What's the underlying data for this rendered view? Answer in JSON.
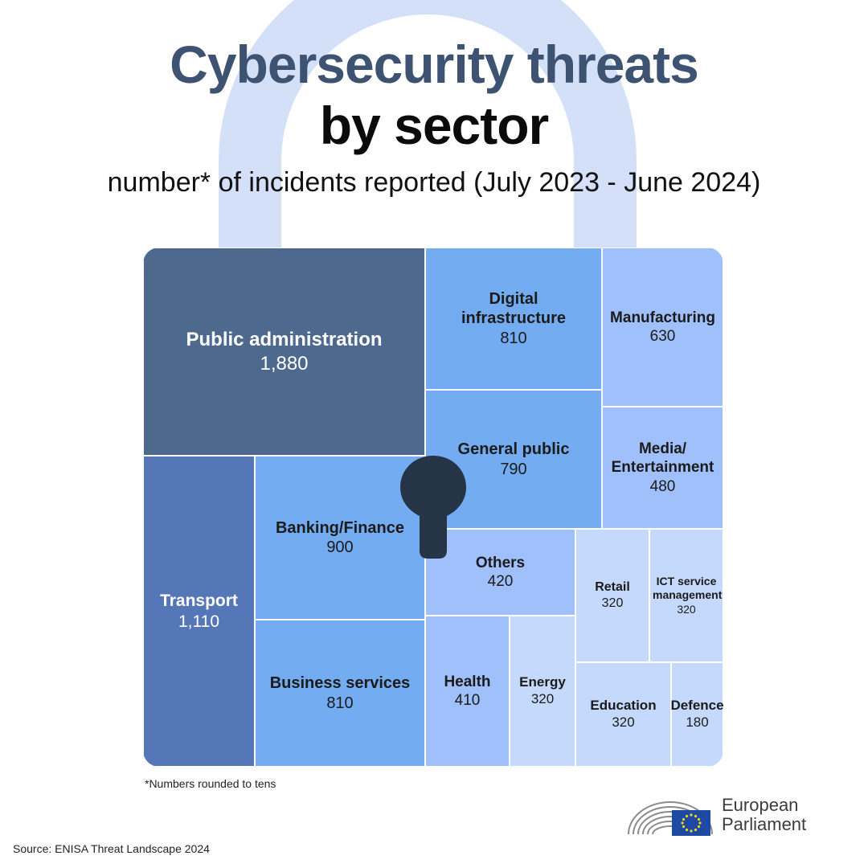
{
  "title": {
    "line1": "Cybersecurity threats",
    "line2": "by sector"
  },
  "subtitle": "number* of incidents reported (July 2023 - June 2024)",
  "chart_data": {
    "type": "treemap",
    "value_unit": "number of incidents reported",
    "categories": [
      "Public administration",
      "Transport",
      "Banking/Finance",
      "Business services",
      "Digital infrastructure",
      "General public",
      "Manufacturing",
      "Media/ Entertainment",
      "Others",
      "Health",
      "Energy",
      "Retail",
      "ICT service management",
      "Education",
      "Defence"
    ],
    "items": [
      {
        "name": "Public administration",
        "value": 1880,
        "label": "1,880",
        "color": "#4d6a8e",
        "text_color": "#ffffff"
      },
      {
        "name": "Transport",
        "value": 1110,
        "label": "1,110",
        "color": "#5577b8",
        "text_color": "#ffffff"
      },
      {
        "name": "Banking/Finance",
        "value": 900,
        "label": "900",
        "color": "#74acf1",
        "text_color": "#1b1b1b"
      },
      {
        "name": "Business services",
        "value": 810,
        "label": "810",
        "color": "#74acf1",
        "text_color": "#1b1b1b"
      },
      {
        "name": "Digital infrastructure",
        "value": 810,
        "label": "810",
        "color": "#74acf1",
        "text_color": "#1b1b1b"
      },
      {
        "name": "General public",
        "value": 790,
        "label": "790",
        "color": "#74acf1",
        "text_color": "#1b1b1b"
      },
      {
        "name": "Manufacturing",
        "value": 630,
        "label": "630",
        "color": "#9fc0fb",
        "text_color": "#1b1b1b"
      },
      {
        "name": "Media/ Entertainment",
        "value": 480,
        "label": "480",
        "color": "#9fc0fb",
        "text_color": "#1b1b1b"
      },
      {
        "name": "Others",
        "value": 420,
        "label": "420",
        "color": "#9fc0fb",
        "text_color": "#1b1b1b"
      },
      {
        "name": "Health",
        "value": 410,
        "label": "410",
        "color": "#9fc0fb",
        "text_color": "#1b1b1b"
      },
      {
        "name": "Energy",
        "value": 320,
        "label": "320",
        "color": "#c5d9fd",
        "text_color": "#1b1b1b"
      },
      {
        "name": "Retail",
        "value": 320,
        "label": "320",
        "color": "#c5d9fd",
        "text_color": "#1b1b1b"
      },
      {
        "name": "ICT service management",
        "value": 320,
        "label": "320",
        "color": "#c5d9fd",
        "text_color": "#1b1b1b"
      },
      {
        "name": "Education",
        "value": 320,
        "label": "320",
        "color": "#c5d9fd",
        "text_color": "#1b1b1b"
      },
      {
        "name": "Defence",
        "value": 180,
        "label": "180",
        "color": "#c5d9fd",
        "text_color": "#1b1b1b"
      }
    ]
  },
  "footnote": "*Numbers rounded to tens",
  "source": "Source: ENISA Threat Landscape 2024",
  "logo": {
    "line1": "European",
    "line2": "Parliament"
  },
  "colors": {
    "title_accent": "#3e5371",
    "shackle": "#d3e0f7",
    "keyhole": "#263447",
    "eu_flag_blue": "#1c4aa5",
    "eu_flag_star": "#f2d51a"
  },
  "icons": [
    "padlock-shackle-icon",
    "keyhole-icon",
    "hemicycle-icon",
    "eu-flag-icon"
  ]
}
